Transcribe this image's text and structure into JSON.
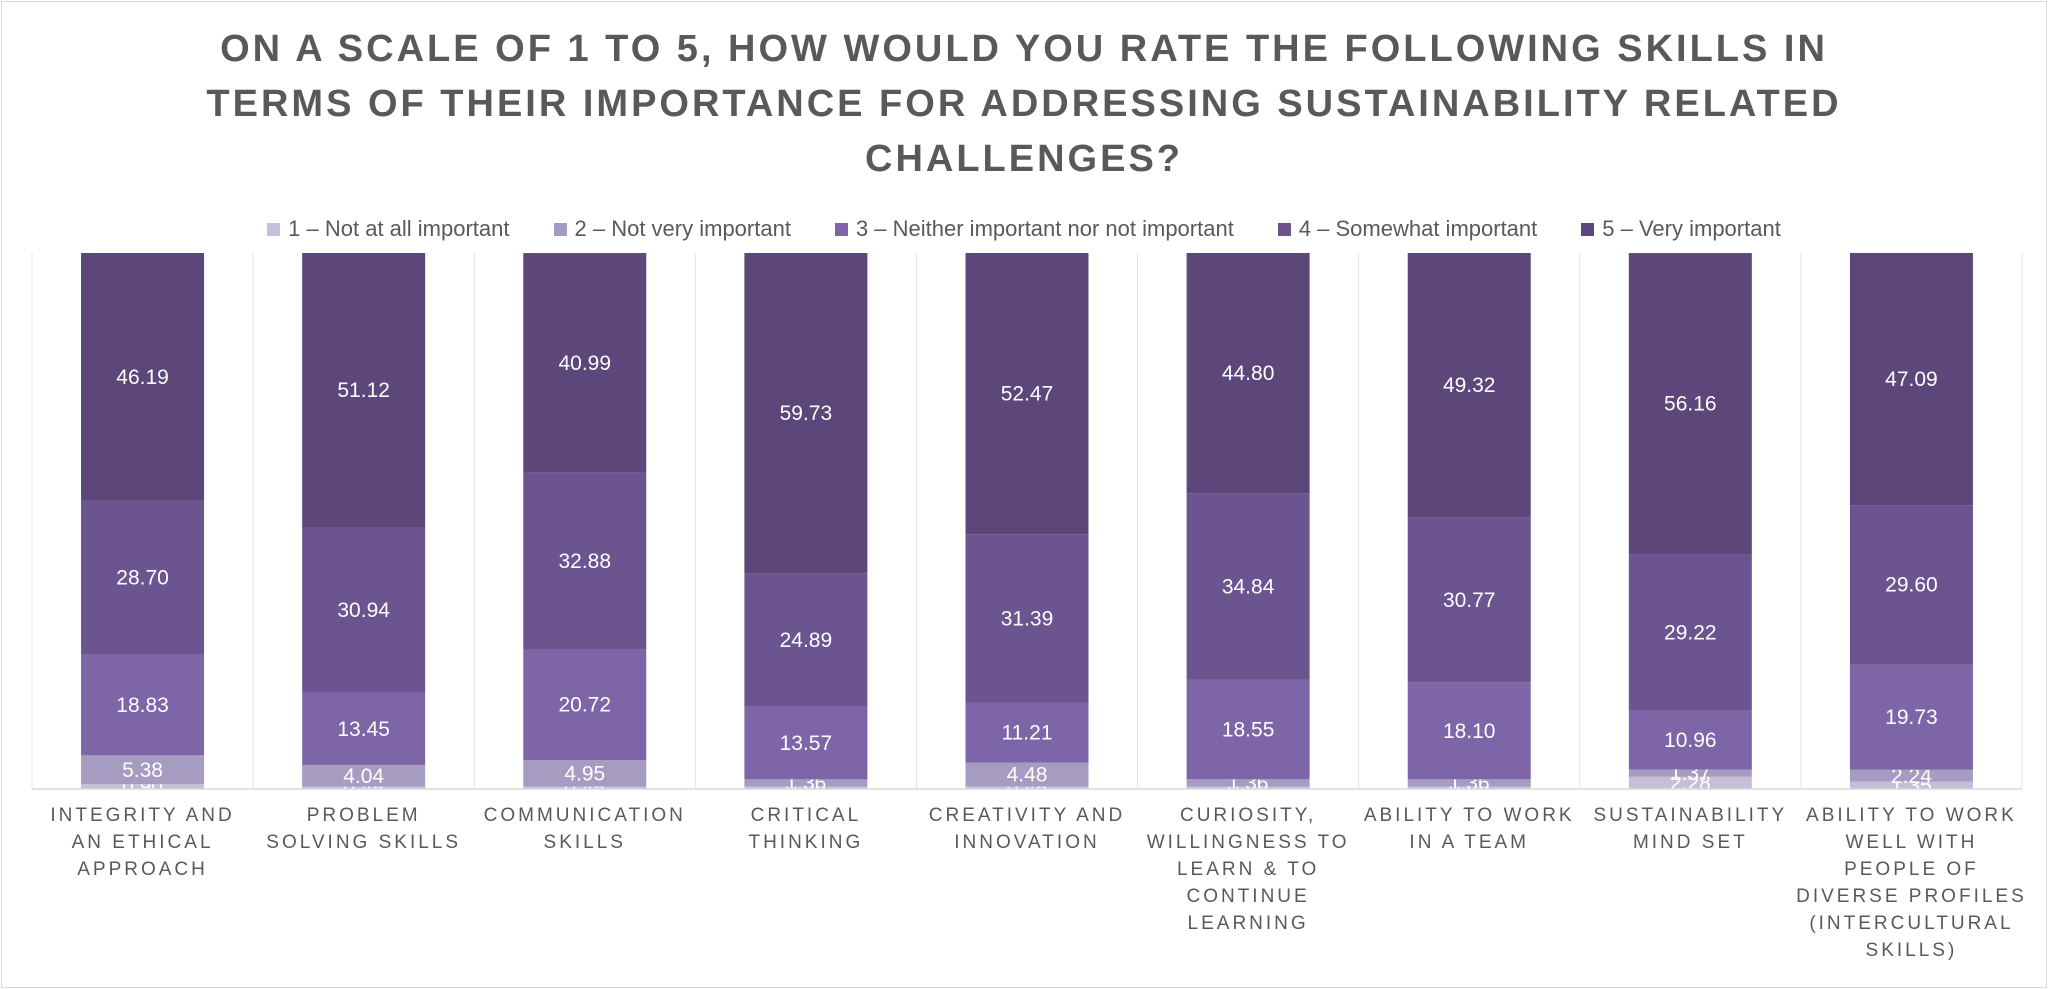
{
  "chart_data": {
    "type": "bar",
    "stacked": true,
    "title": "ON A SCALE OF 1 TO 5, HOW WOULD YOU RATE THE FOLLOWING SKILLS IN TERMS OF THEIR IMPORTANCE FOR ADDRESSING SUSTAINABILITY RELATED CHALLENGES?",
    "ylim": [
      0,
      100
    ],
    "grid": "vertical",
    "legend_position": "top",
    "categories": [
      "INTEGRITY AND AN ETHICAL APPROACH",
      "PROBLEM SOLVING SKILLS",
      "COMMUNICATION SKILLS",
      "CRITICAL THINKING",
      "CREATIVITY AND INNOVATION",
      "CURIOSITY, WILLINGNESS TO LEARN & TO CONTINUE LEARNING",
      "ABILITY TO WORK IN A TEAM",
      "SUSTAINABILITY MIND SET",
      "ABILITY TO WORK WELL WITH PEOPLE OF DIVERSE PROFILES (INTERCULTURAL SKILLS)"
    ],
    "category_lines": [
      [
        "INTEGRITY AND",
        "AN ETHICAL",
        "APPROACH"
      ],
      [
        "PROBLEM",
        "SOLVING SKILLS"
      ],
      [
        "COMMUNICATION",
        "SKILLS"
      ],
      [
        "CRITICAL",
        "THINKING"
      ],
      [
        "CREATIVITY AND",
        "INNOVATION"
      ],
      [
        "CURIOSITY,",
        "WILLINGNESS TO",
        "LEARN & TO",
        "CONTINUE",
        "LEARNING"
      ],
      [
        "ABILITY TO WORK",
        "IN A TEAM"
      ],
      [
        "SUSTAINABILITY",
        "MIND SET"
      ],
      [
        "ABILITY TO WORK",
        "WELL WITH",
        "PEOPLE OF",
        "DIVERSE PROFILES",
        "(INTERCULTURAL",
        "SKILLS)"
      ]
    ],
    "series": [
      {
        "name": "1 – Not at all important",
        "color": "#c6bfd9",
        "values": [
          0.9,
          0.45,
          0.45,
          0.45,
          0.45,
          0.45,
          0.45,
          2.28,
          1.35
        ]
      },
      {
        "name": "2 – Not very important",
        "color": "#a69bc0",
        "values": [
          5.38,
          4.04,
          4.95,
          1.36,
          4.48,
          1.36,
          1.36,
          1.37,
          2.24
        ]
      },
      {
        "name": "3 – Neither important nor not important",
        "color": "#7d65a8",
        "values": [
          18.83,
          13.45,
          20.72,
          13.57,
          11.21,
          18.55,
          18.1,
          10.96,
          19.73
        ]
      },
      {
        "name": "4 – Somewhat important",
        "color": "#6b5490",
        "values": [
          28.7,
          30.94,
          32.88,
          24.89,
          31.39,
          34.84,
          30.77,
          29.22,
          29.6
        ]
      },
      {
        "name": "5 – Very important",
        "color": "#5d4679",
        "values": [
          46.19,
          51.12,
          40.99,
          59.73,
          52.47,
          44.8,
          49.32,
          56.16,
          47.09
        ]
      }
    ]
  }
}
